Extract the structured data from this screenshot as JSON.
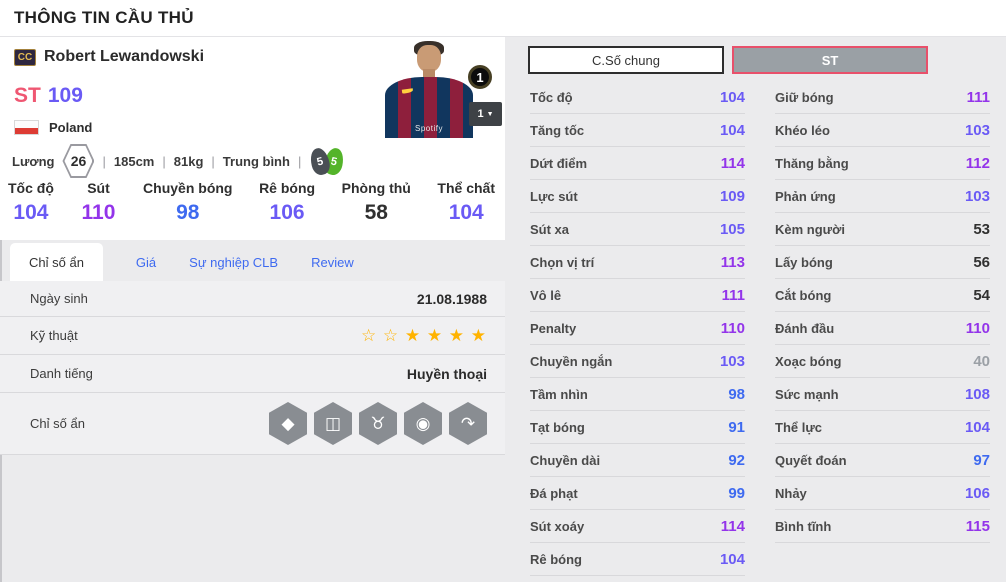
{
  "page": {
    "title": "THÔNG TIN CẦU THỦ"
  },
  "player": {
    "class_badge": "CC",
    "name": "Robert Lewandowski",
    "position": "ST",
    "rating": "109",
    "nation": "Poland",
    "jersey_text": "Spotify",
    "level_badge": "1",
    "level_select": "1",
    "divider": "|",
    "salary_label": "Lương",
    "salary": "26",
    "height": "185cm",
    "weight": "81kg",
    "body_type": "Trung bình",
    "weak_foot": "5",
    "strong_foot": "5"
  },
  "summary_stats": [
    {
      "label": "Tốc độ",
      "value": "104"
    },
    {
      "label": "Sút",
      "value": "110"
    },
    {
      "label": "Chuyền bóng",
      "value": "98"
    },
    {
      "label": "Rê bóng",
      "value": "106"
    },
    {
      "label": "Phòng thủ",
      "value": "58"
    },
    {
      "label": "Thể chất",
      "value": "104"
    }
  ],
  "tabs": {
    "hidden_stats": "Chỉ số ẩn",
    "price": "Giá",
    "club_career": "Sự nghiệp CLB",
    "review": "Review"
  },
  "info_table": {
    "birth_label": "Ngày sinh",
    "birth_value": "21.08.1988",
    "skill_label": "Kỹ thuật",
    "skill_stars": "☆ ☆ ★ ★ ★ ★",
    "fame_label": "Danh tiếng",
    "fame_value": "Huyền thoại",
    "hidden_label": "Chỉ số ẩn",
    "hidden_icons": {
      "diamond": "◆",
      "goal": "◫",
      "bull": "♉",
      "boot_target": "◉",
      "curve_shot": "↷"
    }
  },
  "detail_panel": {
    "tab_general": "C.Số chung",
    "tab_position": "ST",
    "left": [
      {
        "label": "Tốc độ",
        "value": "104"
      },
      {
        "label": "Tăng tốc",
        "value": "104"
      },
      {
        "label": "Dứt điểm",
        "value": "114"
      },
      {
        "label": "Lực sút",
        "value": "109"
      },
      {
        "label": "Sút xa",
        "value": "105"
      },
      {
        "label": "Chọn vị trí",
        "value": "113"
      },
      {
        "label": "Vô lê",
        "value": "111"
      },
      {
        "label": "Penalty",
        "value": "110"
      },
      {
        "label": "Chuyền ngắn",
        "value": "103"
      },
      {
        "label": "Tầm nhìn",
        "value": "98"
      },
      {
        "label": "Tạt bóng",
        "value": "91"
      },
      {
        "label": "Chuyền dài",
        "value": "92"
      },
      {
        "label": "Đá phạt",
        "value": "99"
      },
      {
        "label": "Sút xoáy",
        "value": "114"
      },
      {
        "label": "Rê bóng",
        "value": "104"
      }
    ],
    "right": [
      {
        "label": "Giữ bóng",
        "value": "111"
      },
      {
        "label": "Khéo léo",
        "value": "103"
      },
      {
        "label": "Thăng bằng",
        "value": "112"
      },
      {
        "label": "Phản ứng",
        "value": "103"
      },
      {
        "label": "Kèm người",
        "value": "53"
      },
      {
        "label": "Lấy bóng",
        "value": "56"
      },
      {
        "label": "Cắt bóng",
        "value": "54"
      },
      {
        "label": "Đánh đầu",
        "value": "110"
      },
      {
        "label": "Xoạc bóng",
        "value": "40"
      },
      {
        "label": "Sức mạnh",
        "value": "108"
      },
      {
        "label": "Thể lực",
        "value": "104"
      },
      {
        "label": "Quyết đoán",
        "value": "97"
      },
      {
        "label": "Nhảy",
        "value": "106"
      },
      {
        "label": "Bình tĩnh",
        "value": "115"
      }
    ]
  },
  "icons": {
    "caret_down": "▼"
  },
  "colors": {
    "accent_pink": "#ef5772",
    "tier_purple": "#9334ea",
    "tier_violet": "#6a5af5",
    "tier_blue": "#3e6af0",
    "tier_dark": "#303030",
    "tier_gray": "#9ba0a6",
    "link_blue": "#3e6af0",
    "star_gold": "#ffb300",
    "flag_red": "#dd3c34",
    "foot_green": "#54b42a",
    "foot_dark": "#4a4f55",
    "st_tab_bg": "#9aa0a5",
    "st_tab_border": "#e8506b"
  }
}
